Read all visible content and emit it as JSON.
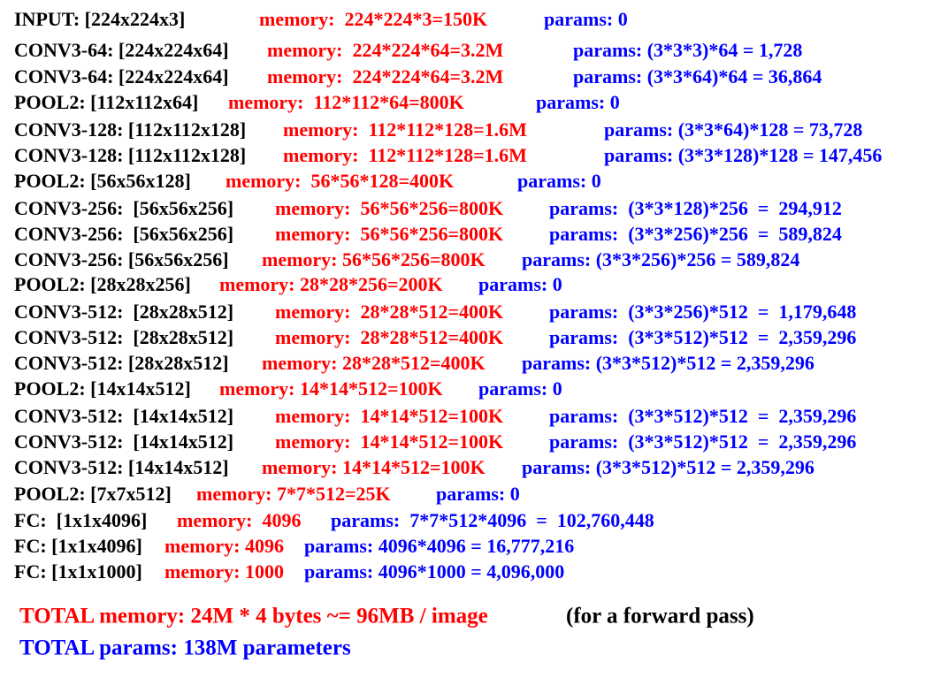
{
  "rows": [
    [
      "INPUT: [224x224x3]",
      "memory:  224*224*3=150K",
      "params: 0"
    ],
    [
      "CONV3-64: [224x224x64]",
      "memory:  224*224*64=3.2M",
      "params: (3*3*3)*64 = 1,728"
    ],
    [
      "CONV3-64: [224x224x64]",
      "memory:  224*224*64=3.2M",
      "params: (3*3*64)*64 = 36,864"
    ],
    [
      "POOL2: [112x112x64]",
      "memory:  112*112*64=800K",
      "params: 0"
    ],
    [
      "CONV3-128: [112x112x128]",
      "memory:  112*112*128=1.6M",
      "params: (3*3*64)*128 = 73,728"
    ],
    [
      "CONV3-128: [112x112x128]",
      "memory:  112*112*128=1.6M",
      "params: (3*3*128)*128 = 147,456"
    ],
    [
      "POOL2: [56x56x128]",
      "memory:  56*56*128=400K",
      "params: 0"
    ],
    [
      "CONV3-256:  [56x56x256]",
      "memory:  56*56*256=800K",
      "params:  (3*3*128)*256  =  294,912"
    ],
    [
      "CONV3-256:  [56x56x256]",
      "memory:  56*56*256=800K",
      "params:  (3*3*256)*256  =  589,824"
    ],
    [
      "CONV3-256: [56x56x256]",
      "memory: 56*56*256=800K",
      "params: (3*3*256)*256 = 589,824"
    ],
    [
      "POOL2: [28x28x256]",
      "memory: 28*28*256=200K",
      "params: 0"
    ],
    [
      "CONV3-512:  [28x28x512]",
      "memory:  28*28*512=400K",
      "params:  (3*3*256)*512  =  1,179,648"
    ],
    [
      "CONV3-512:  [28x28x512]",
      "memory:  28*28*512=400K",
      "params:  (3*3*512)*512  =  2,359,296"
    ],
    [
      "CONV3-512: [28x28x512]",
      "memory: 28*28*512=400K",
      "params: (3*3*512)*512 = 2,359,296"
    ],
    [
      "POOL2: [14x14x512]",
      "memory: 14*14*512=100K",
      "params: 0"
    ],
    [
      "CONV3-512:  [14x14x512]",
      "memory:  14*14*512=100K",
      "params:  (3*3*512)*512  =  2,359,296"
    ],
    [
      "CONV3-512:  [14x14x512]",
      "memory:  14*14*512=100K",
      "params:  (3*3*512)*512  =  2,359,296"
    ],
    [
      "CONV3-512: [14x14x512]",
      "memory: 14*14*512=100K",
      "params: (3*3*512)*512 = 2,359,296"
    ],
    [
      "POOL2: [7x7x512]",
      "memory: 7*7*512=25K",
      "params: 0"
    ],
    [
      "FC:  [1x1x4096]",
      "memory:  4096",
      "params:  7*7*512*4096  =  102,760,448"
    ],
    [
      "FC: [1x1x4096]",
      "memory: 4096",
      "params: 4096*4096 = 16,777,216"
    ],
    [
      "FC: [1x1x1000]",
      "memory: 1000",
      "params: 4096*1000 = 4,096,000"
    ]
  ],
  "total_memory": "TOTAL memory: 24M * 4 bytes ~= 96MB / image",
  "total_memory_note": "(for a forward pass)",
  "total_params": "TOTAL params: 138M parameters"
}
